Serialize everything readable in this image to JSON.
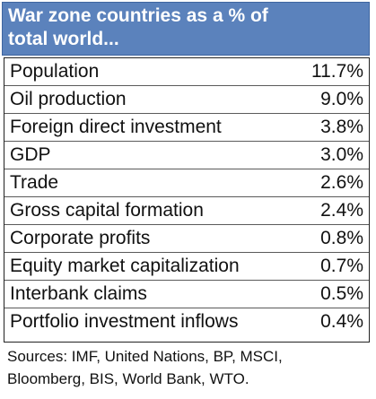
{
  "header": {
    "line1": "War zone countries as a % of",
    "line2": "total world..."
  },
  "colors": {
    "header_background": "#5b82bc",
    "header_text": "#ffffff",
    "table_border": "#222222"
  },
  "table": {
    "rows": [
      {
        "label": "Population",
        "value": "11.7%"
      },
      {
        "label": "Oil production",
        "value": "9.0%"
      },
      {
        "label": "Foreign direct investment",
        "value": "3.8%"
      },
      {
        "label": "GDP",
        "value": "3.0%"
      },
      {
        "label": "Trade",
        "value": "2.6%"
      },
      {
        "label": "Gross capital formation",
        "value": "2.4%"
      },
      {
        "label": "Corporate profits",
        "value": "0.8%"
      },
      {
        "label": "Equity market capitalization",
        "value": "0.7%"
      },
      {
        "label": "Interbank claims",
        "value": "0.5%"
      },
      {
        "label": "Portfolio investment inflows",
        "value": "0.4%"
      }
    ]
  },
  "sources": {
    "line1": "Sources: IMF, United Nations, BP, MSCI,",
    "line2": "Bloomberg, BIS, World Bank, WTO."
  }
}
